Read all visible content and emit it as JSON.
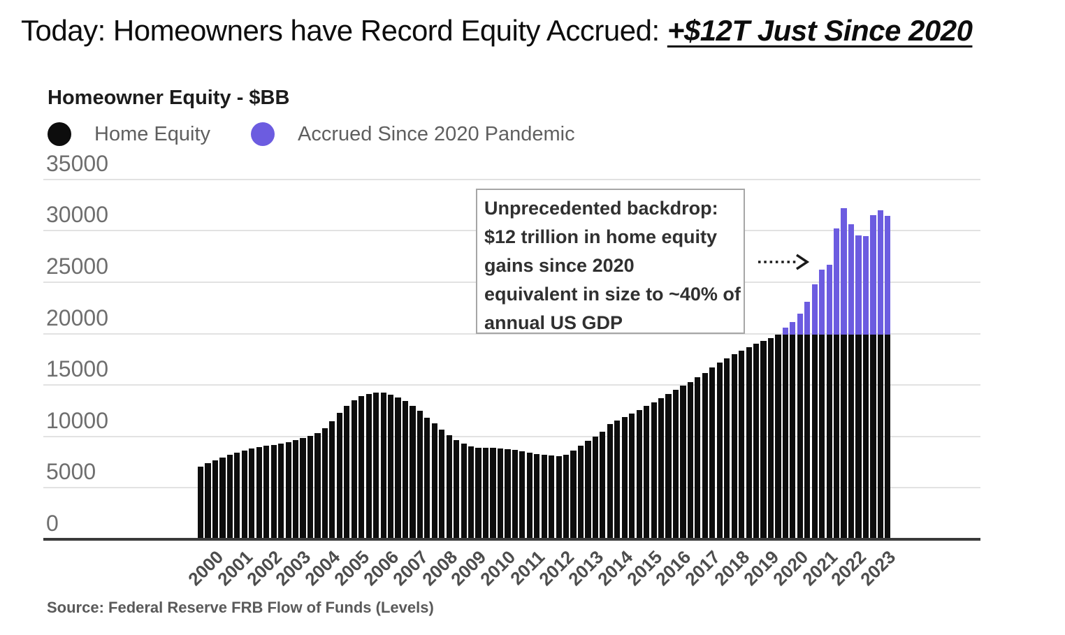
{
  "heading": {
    "prefix": "Today: Homeowners have Record Equity Accrued: ",
    "highlight": "+$12T Just Since 2020"
  },
  "chart": {
    "title": "Homeowner Equity - $BB",
    "legend": [
      {
        "label": "Home Equity",
        "color": "#0d0d0d"
      },
      {
        "label": "Accrued Since 2020 Pandemic",
        "color": "#6c5ce0"
      }
    ],
    "annotation_lines": [
      "Unprecedented backdrop:",
      "$12 trillion in home equity",
      "gains since 2020",
      "equivalent in size to ~40% of",
      "annual US GDP"
    ],
    "arrow_icon": "dotted-arrow-right",
    "source": "Source: Federal Reserve FRB Flow of Funds (Levels)"
  },
  "chart_data": {
    "type": "bar",
    "title": "Homeowner Equity - $BB",
    "unit": "$ billions",
    "frequency": "quarterly",
    "ylim": [
      0,
      35000
    ],
    "y_ticks": [
      0,
      5000,
      10000,
      15000,
      20000,
      25000,
      30000,
      35000
    ],
    "x_year_labels": [
      2000,
      2001,
      2002,
      2003,
      2004,
      2005,
      2006,
      2007,
      2008,
      2009,
      2010,
      2011,
      2012,
      2013,
      2014,
      2015,
      2016,
      2017,
      2018,
      2019,
      2020,
      2021,
      2022,
      2023
    ],
    "stacking": "home equity shown in black capped at base_value from 2020Q1 onward; amount above base_value shown in accrued color",
    "base_value": 19890,
    "series_names": [
      "Home Equity",
      "Accrued Since 2020 Pandemic"
    ],
    "x_labels": [
      "2000Q1",
      "2000Q2",
      "2000Q3",
      "2000Q4",
      "2001Q1",
      "2001Q2",
      "2001Q3",
      "2001Q4",
      "2002Q1",
      "2002Q2",
      "2002Q3",
      "2002Q4",
      "2003Q1",
      "2003Q2",
      "2003Q3",
      "2003Q4",
      "2004Q1",
      "2004Q2",
      "2004Q3",
      "2004Q4",
      "2005Q1",
      "2005Q2",
      "2005Q3",
      "2005Q4",
      "2006Q1",
      "2006Q2",
      "2006Q3",
      "2006Q4",
      "2007Q1",
      "2007Q2",
      "2007Q3",
      "2007Q4",
      "2008Q1",
      "2008Q2",
      "2008Q3",
      "2008Q4",
      "2009Q1",
      "2009Q2",
      "2009Q3",
      "2009Q4",
      "2010Q1",
      "2010Q2",
      "2010Q3",
      "2010Q4",
      "2011Q1",
      "2011Q2",
      "2011Q3",
      "2011Q4",
      "2012Q1",
      "2012Q2",
      "2012Q3",
      "2012Q4",
      "2013Q1",
      "2013Q2",
      "2013Q3",
      "2013Q4",
      "2014Q1",
      "2014Q2",
      "2014Q3",
      "2014Q4",
      "2015Q1",
      "2015Q2",
      "2015Q3",
      "2015Q4",
      "2016Q1",
      "2016Q2",
      "2016Q3",
      "2016Q4",
      "2017Q1",
      "2017Q2",
      "2017Q3",
      "2017Q4",
      "2018Q1",
      "2018Q2",
      "2018Q3",
      "2018Q4",
      "2019Q1",
      "2019Q2",
      "2019Q3",
      "2019Q4",
      "2020Q1",
      "2020Q2",
      "2020Q3",
      "2020Q4",
      "2021Q1",
      "2021Q2",
      "2021Q3",
      "2021Q4",
      "2022Q1",
      "2022Q2",
      "2022Q3",
      "2022Q4",
      "2023Q1",
      "2023Q2",
      "2023Q3"
    ],
    "totals": [
      7100,
      7400,
      7650,
      7950,
      8200,
      8400,
      8600,
      8800,
      8950,
      9080,
      9200,
      9330,
      9450,
      9620,
      9820,
      10060,
      10350,
      10800,
      11500,
      12300,
      13000,
      13500,
      13900,
      14150,
      14300,
      14280,
      14060,
      13760,
      13420,
      12970,
      12500,
      11850,
      11250,
      10650,
      10100,
      9650,
      9300,
      9050,
      8920,
      8870,
      8870,
      8840,
      8780,
      8680,
      8560,
      8440,
      8320,
      8200,
      8120,
      8100,
      8250,
      8600,
      9100,
      9550,
      10000,
      10450,
      11200,
      11550,
      11900,
      12250,
      12600,
      12950,
      13350,
      13750,
      14150,
      14550,
      14950,
      15300,
      15750,
      16200,
      16700,
      17200,
      17600,
      18000,
      18350,
      18700,
      19000,
      19300,
      19600,
      19890,
      20620,
      21140,
      21960,
      23130,
      24800,
      26250,
      26700,
      30250,
      32240,
      30620,
      29580,
      29490,
      31520,
      31970,
      31450
    ],
    "colors": {
      "home_equity": "#0d0d0d",
      "accrued": "#6c5ce0"
    },
    "legend_position": "top-left",
    "grid": true
  }
}
